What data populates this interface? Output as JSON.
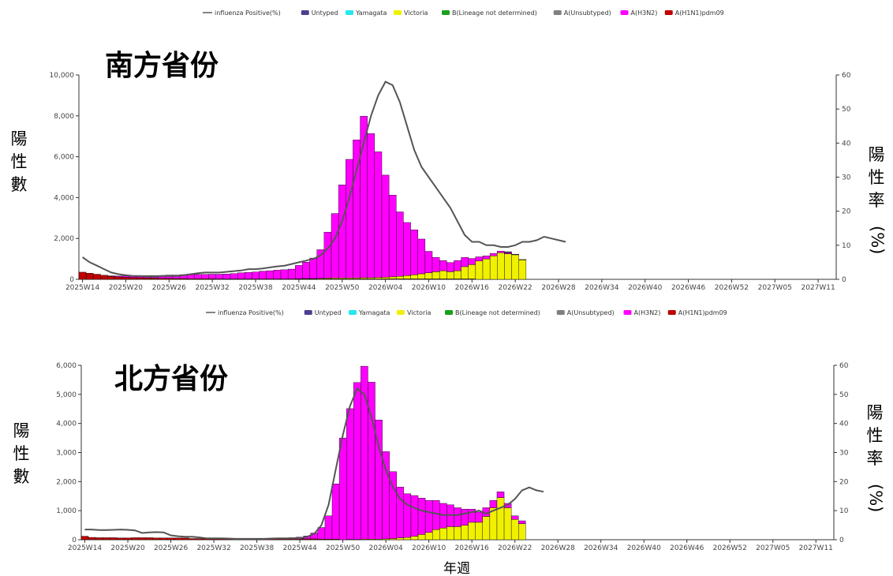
{
  "legend": [
    {
      "label": "influenza Positive(%)",
      "color": "#666666",
      "kind": "line"
    },
    {
      "label": "Untyped",
      "color": "#4b3f8f",
      "kind": "box"
    },
    {
      "label": "Yamagata",
      "color": "#26e8f0",
      "kind": "box"
    },
    {
      "label": "Victoria",
      "color": "#f0f000",
      "kind": "box"
    },
    {
      "label": "B(Lineage not determined)",
      "color": "#1aa01a",
      "kind": "box"
    },
    {
      "label": "A(Unsubtyped)",
      "color": "#808080",
      "kind": "box"
    },
    {
      "label": "A(H3N2)",
      "color": "#ff00ff",
      "kind": "box"
    },
    {
      "label": "A(H1N1)pdm09",
      "color": "#c00000",
      "kind": "box"
    }
  ],
  "x_label": "年週",
  "chart_data": [
    {
      "type": "bar",
      "title": "南方省份",
      "ylabel": "陽性數",
      "y2label": "陽性率(%)",
      "stacked": true,
      "ylim": [
        0,
        10000
      ],
      "y2lim": [
        0,
        60
      ],
      "yticks": [
        "0",
        "2,000",
        "4,000",
        "6,000",
        "8,000",
        "10,000"
      ],
      "y2ticks": [
        "0",
        "10",
        "20",
        "30",
        "40",
        "50",
        "60"
      ],
      "xtick_labels": [
        "2025W14",
        "2025W20",
        "2025W26",
        "2025W32",
        "2025W38",
        "2025W44",
        "2025W50",
        "2026W04",
        "2026W10",
        "2026W16",
        "2026W22",
        "2026W28",
        "2026W34",
        "2026W40",
        "2026W46",
        "2026W52",
        "2027W05",
        "2027W11"
      ],
      "total_weeks": 105,
      "series": [
        {
          "name": "A(H1N1)pdm09",
          "values": [
            350,
            300,
            250,
            200,
            150,
            120,
            100,
            90,
            80,
            70,
            60,
            50,
            50,
            40,
            40,
            30,
            30,
            30,
            30,
            20,
            20,
            20,
            20,
            20,
            20,
            20,
            20,
            20,
            20,
            20,
            20,
            20,
            20,
            20,
            20,
            20,
            20,
            20,
            20,
            20,
            20,
            20,
            20,
            20,
            20,
            20,
            20,
            20,
            20,
            20,
            20,
            20,
            20,
            20,
            20
          ]
        },
        {
          "name": "A(H3N2)",
          "values": [
            0,
            0,
            0,
            0,
            20,
            40,
            60,
            80,
            100,
            110,
            120,
            140,
            160,
            170,
            190,
            200,
            210,
            210,
            220,
            230,
            240,
            260,
            300,
            320,
            340,
            380,
            400,
            430,
            450,
            480,
            650,
            800,
            1000,
            1400,
            2250,
            3150,
            4550,
            5800,
            6750,
            7900,
            7050,
            6150,
            5000,
            4000,
            3150,
            2600,
            2200,
            1700,
            1050,
            700,
            500,
            450,
            500,
            450,
            300,
            200,
            150,
            120,
            80,
            50
          ]
        },
        {
          "name": "Victoria",
          "values": [
            0,
            0,
            0,
            0,
            0,
            0,
            0,
            0,
            0,
            0,
            0,
            0,
            0,
            0,
            0,
            0,
            0,
            0,
            0,
            0,
            0,
            0,
            0,
            0,
            0,
            0,
            0,
            0,
            0,
            0,
            10,
            20,
            20,
            30,
            40,
            50,
            50,
            50,
            50,
            60,
            60,
            70,
            80,
            100,
            130,
            160,
            200,
            250,
            300,
            350,
            400,
            350,
            400,
            600,
            700,
            900,
            1000,
            1150,
            1300,
            1250,
            1200,
            950
          ]
        },
        {
          "name": "Untyped",
          "values": [
            0,
            0,
            0,
            0,
            0,
            0,
            0,
            0,
            0,
            0,
            0,
            0,
            0,
            0,
            0,
            0,
            0,
            0,
            0,
            0,
            0,
            0,
            0,
            0,
            0,
            0,
            0,
            0,
            0,
            0,
            0,
            0,
            0,
            0,
            0,
            0,
            0,
            0,
            0,
            0,
            0,
            0,
            0,
            0,
            0,
            0,
            0,
            0,
            0,
            0,
            0,
            0,
            0,
            0,
            0,
            0,
            0,
            0,
            0,
            50,
            30,
            20
          ]
        }
      ],
      "positive_rate": [
        6.5,
        5,
        4,
        3,
        2,
        1.5,
        1.2,
        1,
        1,
        0.8,
        0.8,
        1,
        1,
        1,
        1.2,
        1.5,
        1.8,
        2,
        2,
        2,
        2.2,
        2.4,
        2.6,
        3,
        3,
        3.2,
        3.5,
        3.8,
        4,
        4.5,
        5,
        5.5,
        6,
        7,
        9,
        12,
        17,
        24,
        32,
        40,
        48,
        54,
        58,
        57,
        52,
        45,
        38,
        33,
        30,
        27,
        24,
        21,
        17,
        13,
        11,
        11,
        10,
        10,
        9.5,
        9.5,
        10,
        11,
        11,
        11.5,
        12.5,
        12,
        11.5,
        11
      ]
    },
    {
      "type": "bar",
      "title": "北方省份",
      "ylabel": "陽性數",
      "y2label": "陽性率(%)",
      "stacked": true,
      "ylim": [
        0,
        6000
      ],
      "y2lim": [
        0,
        60
      ],
      "yticks": [
        "0",
        "1,000",
        "2,000",
        "3,000",
        "4,000",
        "5,000",
        "6,000"
      ],
      "y2ticks": [
        "0",
        "10",
        "20",
        "30",
        "40",
        "50",
        "60"
      ],
      "xtick_labels": [
        "2025W14",
        "2025W20",
        "2025W26",
        "2025W32",
        "2025W38",
        "2025W44",
        "2025W50",
        "2026W04",
        "2026W10",
        "2026W16",
        "2026W22",
        "2026W28",
        "2026W34",
        "2026W40",
        "2026W46",
        "2026W52",
        "2027W05",
        "2027W11"
      ],
      "total_weeks": 105,
      "series": [
        {
          "name": "A(H1N1)pdm09",
          "values": [
            120,
            80,
            70,
            70,
            70,
            60,
            60,
            70,
            70,
            70,
            60,
            60,
            60,
            60,
            60,
            40,
            40,
            40,
            30,
            30,
            30,
            30,
            30,
            30,
            30,
            30,
            30,
            30,
            30,
            30,
            30,
            30,
            30,
            20,
            20,
            20
          ]
        },
        {
          "name": "A(H3N2)",
          "values": [
            0,
            0,
            0,
            0,
            0,
            0,
            0,
            0,
            0,
            0,
            0,
            0,
            0,
            0,
            0,
            0,
            0,
            0,
            0,
            0,
            0,
            0,
            0,
            0,
            0,
            0,
            0,
            0,
            20,
            40,
            60,
            100,
            200,
            400,
            800,
            1900,
            3500,
            4500,
            5400,
            5950,
            5400,
            4100,
            3000,
            2300,
            1750,
            1500,
            1400,
            1250,
            1100,
            1000,
            850,
            750,
            650,
            550,
            450,
            350,
            300,
            250,
            200,
            150,
            120,
            100
          ]
        },
        {
          "name": "Victoria",
          "values": [
            0,
            0,
            0,
            0,
            0,
            0,
            0,
            0,
            0,
            0,
            0,
            0,
            0,
            0,
            0,
            0,
            0,
            0,
            0,
            0,
            0,
            0,
            0,
            0,
            0,
            0,
            0,
            0,
            0,
            0,
            0,
            0,
            0,
            0,
            0,
            0,
            0,
            10,
            10,
            20,
            20,
            20,
            30,
            40,
            60,
            80,
            120,
            180,
            250,
            350,
            400,
            450,
            450,
            500,
            600,
            600,
            800,
            1100,
            1450,
            1100,
            700,
            550
          ]
        }
      ],
      "positive_rate": [
        3.5,
        3.5,
        3.3,
        3.3,
        3.4,
        3.5,
        3.4,
        3.2,
        2.3,
        2.5,
        2.6,
        2.5,
        1.5,
        1.2,
        1,
        1,
        0.8,
        0.5,
        0.5,
        0.5,
        0.4,
        0.3,
        0.3,
        0.3,
        0.3,
        0.3,
        0.4,
        0.5,
        0.5,
        0.5,
        0.5,
        1,
        2,
        5,
        12,
        24,
        36,
        46,
        52,
        50,
        42,
        32,
        24,
        18,
        14,
        12,
        11,
        10,
        9.5,
        9,
        8.5,
        8.5,
        8.5,
        9,
        9.5,
        10,
        9,
        10,
        11,
        12,
        14,
        17,
        18,
        17,
        16.5
      ]
    }
  ]
}
